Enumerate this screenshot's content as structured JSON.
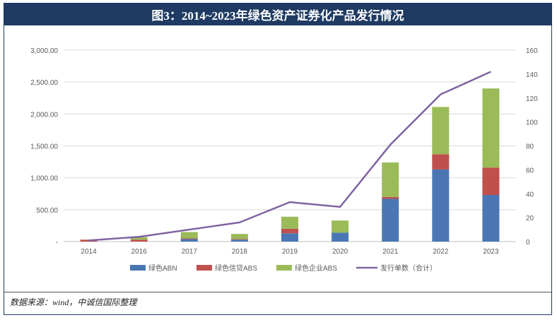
{
  "title": "图3：2014~2023年绿色资产证券化产品发行情况",
  "source": "数据来源：wind，中诚信国际整理",
  "colors": {
    "header_bg": "#1f3b63",
    "abn": "#4a77b4",
    "credit_abs": "#c0504d",
    "corp_abs": "#9bbb59",
    "line": "#8064a2"
  },
  "chart_data": {
    "type": "bar",
    "stacked": true,
    "categories": [
      "2014",
      "2016",
      "2017",
      "2018",
      "2019",
      "2020",
      "2021",
      "2022",
      "2023"
    ],
    "series": [
      {
        "name": "绿色ABN",
        "axis": "left",
        "values": [
          0,
          0,
          40,
          30,
          130,
          140,
          670,
          1130,
          730
        ]
      },
      {
        "name": "绿色信贷ABS",
        "axis": "left",
        "values": [
          30,
          30,
          10,
          10,
          70,
          0,
          30,
          240,
          430
        ]
      },
      {
        "name": "绿色企业ABS",
        "axis": "left",
        "values": [
          0,
          40,
          100,
          80,
          190,
          190,
          540,
          740,
          1240
        ]
      },
      {
        "name": "发行单数（合计）",
        "type": "line",
        "axis": "right",
        "values": [
          1,
          4,
          10,
          16,
          33,
          29,
          81,
          123,
          142
        ]
      }
    ],
    "left_axis": {
      "min": 0,
      "max": 3000,
      "ticks": [
        "-",
        "500.00",
        "1,000.00",
        "1,500.00",
        "2,000.00",
        "2,500.00",
        "3,000.00"
      ]
    },
    "right_axis": {
      "min": 0,
      "max": 160,
      "ticks": [
        "0",
        "20",
        "40",
        "60",
        "80",
        "100",
        "120",
        "140",
        "160"
      ]
    },
    "grid": true,
    "legend_position": "bottom"
  }
}
